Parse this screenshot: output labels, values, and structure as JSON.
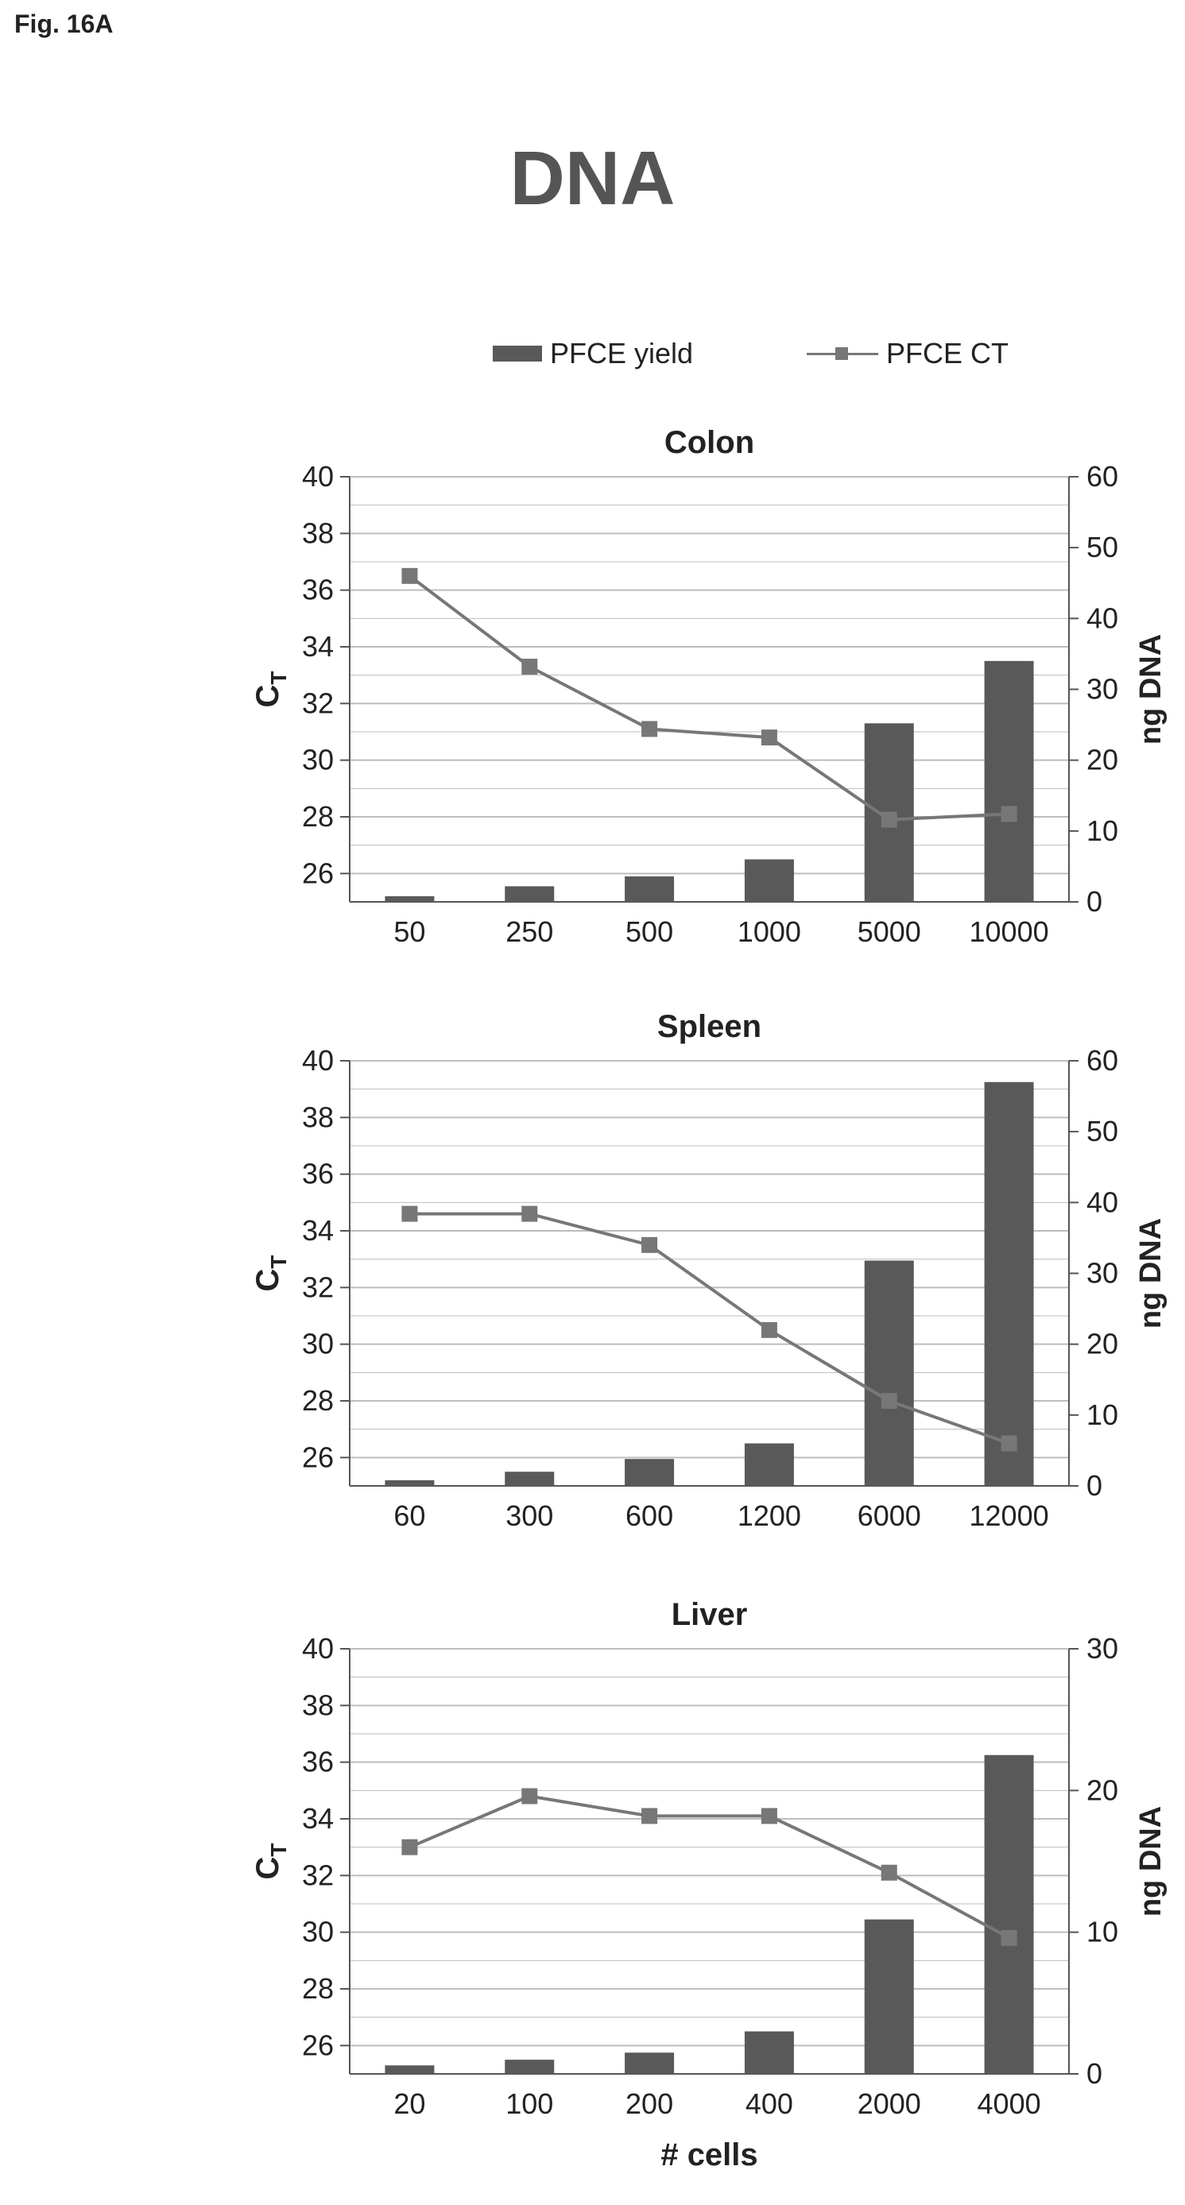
{
  "figure_label": "Fig. 16A",
  "title": "DNA",
  "legend": {
    "bar": "PFCE yield",
    "line": "PFCE CT"
  },
  "colors": {
    "bar": "#595959",
    "line": "#777777",
    "grid": "#bdbdbd"
  },
  "chart_data": [
    {
      "type": "bar",
      "title": "Colon",
      "categories": [
        "50",
        "250",
        "500",
        "1000",
        "5000",
        "10000"
      ],
      "xlabel": "",
      "ylabel_left_main": "C",
      "ylabel_left_sub": "T",
      "ylabel_right": "ng DNA",
      "y_left": {
        "min": 25,
        "max": 40,
        "ticks": [
          26,
          28,
          30,
          32,
          34,
          36,
          38,
          40
        ]
      },
      "y_right": {
        "min": 0,
        "max": 60,
        "ticks": [
          0,
          10,
          20,
          30,
          40,
          50,
          60
        ]
      },
      "series": [
        {
          "name": "PFCE yield",
          "type": "bar",
          "axis": "right",
          "values": [
            0.8,
            2.2,
            3.6,
            6.0,
            25.2,
            34
          ]
        },
        {
          "name": "PFCE CT",
          "type": "line",
          "axis": "left",
          "values": [
            36.5,
            33.3,
            31.1,
            30.8,
            27.9,
            28.1
          ]
        }
      ],
      "grid": true,
      "legend_position": "top"
    },
    {
      "type": "bar",
      "title": "Spleen",
      "categories": [
        "60",
        "300",
        "600",
        "1200",
        "6000",
        "12000"
      ],
      "xlabel": "",
      "ylabel_left_main": "C",
      "ylabel_left_sub": "T",
      "ylabel_right": "ng DNA",
      "y_left": {
        "min": 25,
        "max": 40,
        "ticks": [
          26,
          28,
          30,
          32,
          34,
          36,
          38,
          40
        ]
      },
      "y_right": {
        "min": 0,
        "max": 60,
        "ticks": [
          0,
          10,
          20,
          30,
          40,
          50,
          60
        ]
      },
      "series": [
        {
          "name": "PFCE yield",
          "type": "bar",
          "axis": "right",
          "values": [
            0.8,
            2.0,
            3.8,
            6.0,
            31.8,
            57
          ]
        },
        {
          "name": "PFCE CT",
          "type": "line",
          "axis": "left",
          "values": [
            34.6,
            34.6,
            33.5,
            30.5,
            28.0,
            26.5
          ]
        }
      ],
      "grid": true,
      "legend_position": "top"
    },
    {
      "type": "bar",
      "title": "Liver",
      "categories": [
        "20",
        "100",
        "200",
        "400",
        "2000",
        "4000"
      ],
      "xlabel": "# cells",
      "ylabel_left_main": "C",
      "ylabel_left_sub": "T",
      "ylabel_right": "ng DNA",
      "y_left": {
        "min": 25,
        "max": 40,
        "ticks": [
          26,
          28,
          30,
          32,
          34,
          36,
          38,
          40
        ]
      },
      "y_right": {
        "min": 0,
        "max": 30,
        "ticks": [
          0,
          10,
          20,
          30
        ]
      },
      "series": [
        {
          "name": "PFCE yield",
          "type": "bar",
          "axis": "right",
          "values": [
            0.6,
            1.0,
            1.5,
            3.0,
            10.9,
            22.5
          ]
        },
        {
          "name": "PFCE CT",
          "type": "line",
          "axis": "left",
          "values": [
            33.0,
            34.8,
            34.1,
            34.1,
            32.1,
            29.8
          ]
        }
      ],
      "grid": true,
      "legend_position": "top"
    }
  ]
}
